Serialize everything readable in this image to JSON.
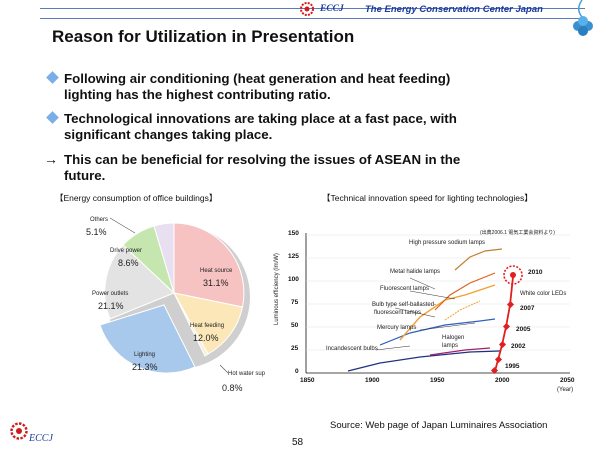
{
  "header": {
    "logo_text": "ECCJ",
    "org_name": "The Energy Conservation Center Japan"
  },
  "title": "Reason for Utilization in Presentation",
  "bullets": [
    {
      "line1": "Following air conditioning (heat generation and heat feeding)",
      "line2": "lighting has the highest contributing ratio."
    },
    {
      "line1": "Technological innovations are taking place at a fast pace, with",
      "line2": "significant changes taking place."
    },
    {
      "line1": "This can be beneficial for resolving the issues of ASEAN in the",
      "line2": "future."
    }
  ],
  "left_section_title": "【Energy consumption of office buildings】",
  "right_section_title": "【Technical innovation speed for lighting technologies】",
  "pie": {
    "slices": [
      {
        "label": "Heat source",
        "value": "31.1%",
        "color": "#f7c2c2"
      },
      {
        "label": "Heat feeding",
        "value": "12.0%",
        "color": "#fce7b8"
      },
      {
        "label": "Hot water sup",
        "value": "0.8%",
        "color": "#f2f2dc"
      },
      {
        "label": "Lighting",
        "value": "21.3%",
        "color": "#a8c8ec"
      },
      {
        "label": "Power outlets",
        "value": "21.1%",
        "color": "#e3e3e3"
      },
      {
        "label": "Drive power",
        "value": "8.6%",
        "color": "#c6e6b0"
      },
      {
        "label": "Others",
        "value": "5.1%",
        "color": "#e8e0f0"
      }
    ]
  },
  "chart": {
    "ref_note": "(出典2006.1 電気工業会資料より)",
    "ylabel": "Luminous efficiency (lm/W)",
    "yticks": [
      "150",
      "125",
      "100",
      "75",
      "50",
      "25",
      "0"
    ],
    "xticks": [
      "1850",
      "1900",
      "1950",
      "2000",
      "2050"
    ],
    "xlabel": "(Year)",
    "line_labels": [
      "High pressure sodium lamps",
      "Metal halide lamps",
      "Fluorescent lamps",
      "Bulb type self-ballasted-",
      "fluorescent lamps",
      "Mercury lamps",
      "Halogen",
      "lamps",
      "Incandescent bulbs",
      "White color LEDs"
    ],
    "led_years": [
      "2010",
      "2007",
      "2005",
      "2002",
      "1995"
    ],
    "colors": {
      "led": "#e02020",
      "mercury": "#3060c0",
      "fluorescent": "#f0a030",
      "sodium": "#c08030",
      "halogen": "#a02070",
      "incandescent": "#203080",
      "metal": "#e06020"
    }
  },
  "source_text": "Source: Web page of Japan Luminaires Association",
  "page_number": "58",
  "footer_logo": "ECCJ"
}
